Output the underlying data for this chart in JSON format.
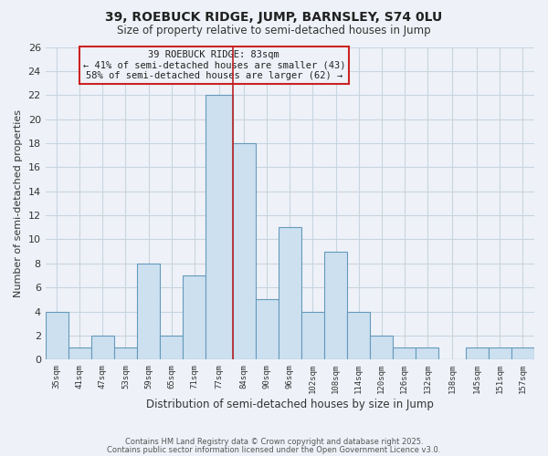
{
  "title": "39, ROEBUCK RIDGE, JUMP, BARNSLEY, S74 0LU",
  "subtitle": "Size of property relative to semi-detached houses in Jump",
  "xlabel": "Distribution of semi-detached houses by size in Jump",
  "ylabel": "Number of semi-detached properties",
  "bin_edges": [
    35,
    41,
    47,
    53,
    59,
    65,
    71,
    77,
    84,
    90,
    96,
    102,
    108,
    114,
    120,
    126,
    132,
    138,
    145,
    151,
    157,
    163
  ],
  "bin_labels": [
    "35sqm",
    "41sqm",
    "47sqm",
    "53sqm",
    "59sqm",
    "65sqm",
    "71sqm",
    "77sqm",
    "84sqm",
    "90sqm",
    "96sqm",
    "102sqm",
    "108sqm",
    "114sqm",
    "120sqm",
    "126sqm",
    "132sqm",
    "138sqm",
    "145sqm",
    "151sqm",
    "157sqm"
  ],
  "counts": [
    4,
    1,
    2,
    1,
    8,
    2,
    7,
    22,
    18,
    5,
    11,
    4,
    9,
    4,
    2,
    1,
    1,
    0,
    1,
    1,
    1
  ],
  "bar_color": "#cce0f0",
  "bar_edgecolor": "#6699bb",
  "grid_color": "#c8d4e0",
  "bg_color": "#eef2f8",
  "vline_x": 84,
  "vline_color": "#bb2222",
  "annotation_text": "39 ROEBUCK RIDGE: 83sqm\n← 41% of semi-detached houses are smaller (43)\n58% of semi-detached houses are larger (62) →",
  "annotation_box_edgecolor": "#cc2222",
  "ylim": [
    0,
    26
  ],
  "yticks": [
    0,
    2,
    4,
    6,
    8,
    10,
    12,
    14,
    16,
    18,
    20,
    22,
    24,
    26
  ],
  "footer1": "Contains HM Land Registry data © Crown copyright and database right 2025.",
  "footer2": "Contains public sector information licensed under the Open Government Licence v3.0."
}
